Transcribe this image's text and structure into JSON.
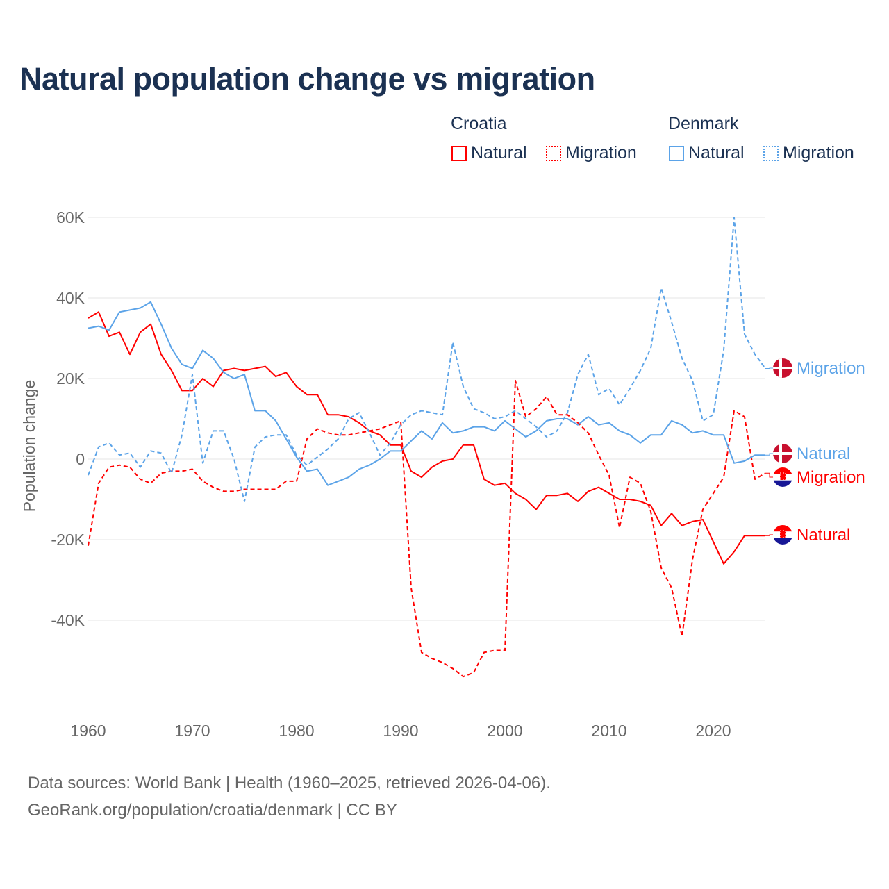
{
  "chart_data": {
    "type": "line",
    "title": "Natural population change vs migration",
    "xlabel": "",
    "ylabel": "Population change",
    "xlim": [
      1960,
      2025
    ],
    "ylim": [
      -57000,
      65000
    ],
    "yticks": [
      60000,
      40000,
      20000,
      0,
      -20000,
      -40000
    ],
    "ytick_labels": [
      "60K",
      "40K",
      "20K",
      "0",
      "-20K",
      "-40K"
    ],
    "xticks": [
      1960,
      1970,
      1980,
      1990,
      2000,
      2010,
      2020
    ],
    "xtick_labels": [
      "1960",
      "1970",
      "1980",
      "1990",
      "2000",
      "2010",
      "2020"
    ],
    "grid": true,
    "legend_position": "top-right",
    "x_start": 1960,
    "series": [
      {
        "name": "Croatia Natural",
        "country": "Croatia",
        "kind": "Natural",
        "color": "#ff0000",
        "dash": false,
        "end_label": "Natural",
        "values": [
          35,
          36.5,
          30.5,
          31.5,
          26,
          31.5,
          33.5,
          26,
          22,
          17,
          17,
          20,
          18,
          22,
          22.5,
          22,
          22.5,
          23,
          20.5,
          21.5,
          18,
          16,
          16,
          11,
          11,
          10.5,
          9,
          7,
          6,
          3.5,
          3.5,
          -3,
          -4.5,
          -2,
          -0.5,
          0,
          3.5,
          3.5,
          -5,
          -6.5,
          -6,
          -8.5,
          -10,
          -12.5,
          -9,
          -9,
          -8.5,
          -10.5,
          -8,
          -7,
          -8.5,
          -10,
          -10,
          -10.5,
          -11.5,
          -16.5,
          -13.5,
          -16.5,
          -15.5,
          -15,
          -20.5,
          -26,
          -23,
          -19,
          -19,
          -19
        ]
      },
      {
        "name": "Croatia Migration",
        "country": "Croatia",
        "kind": "Migration",
        "color": "#ff0000",
        "dash": true,
        "end_label": "Migration",
        "values": [
          -21.5,
          -6,
          -2,
          -1.5,
          -2,
          -5,
          -6,
          -3.5,
          -3,
          -3,
          -2.5,
          -5.5,
          -7,
          -8,
          -8,
          -7.5,
          -7.5,
          -7.5,
          -7.5,
          -5.5,
          -5.5,
          5,
          7.5,
          6.5,
          6,
          6,
          6.5,
          7,
          7.5,
          8.5,
          9.5,
          -32,
          -48,
          -49.5,
          -50.5,
          -52,
          -54,
          -53,
          -48,
          -47.5,
          -47.5,
          19.5,
          10.5,
          12.5,
          15.5,
          11,
          11,
          9,
          6.5,
          1,
          -4,
          -17,
          -4.5,
          -6,
          -13,
          -27,
          -32,
          -44,
          -25,
          -12.5,
          -8.5,
          -4.5,
          12,
          10.5,
          -5,
          -3.5
        ]
      },
      {
        "name": "Denmark Natural",
        "country": "Denmark",
        "kind": "Natural",
        "color": "#5ba3e8",
        "dash": false,
        "end_label": "Natural",
        "values": [
          32.5,
          33,
          32,
          36.5,
          37,
          37.5,
          39,
          33.5,
          27.5,
          23.5,
          22.5,
          27,
          25,
          21.5,
          20,
          21,
          12,
          12,
          9.5,
          5,
          0.5,
          -3,
          -2.5,
          -6.5,
          -5.5,
          -4.5,
          -2.5,
          -1.5,
          0,
          2,
          2,
          4.5,
          7,
          5,
          9,
          6.5,
          7,
          8,
          8,
          7,
          9.5,
          7.5,
          5.5,
          7,
          9.5,
          10,
          10,
          8.5,
          10.5,
          8.5,
          9,
          7,
          6,
          4,
          6,
          6,
          9.5,
          8.5,
          6.5,
          7,
          6,
          6,
          -1,
          -0.5,
          1,
          1
        ]
      },
      {
        "name": "Denmark Migration",
        "country": "Denmark",
        "kind": "Migration",
        "color": "#5ba3e8",
        "dash": true,
        "end_label": "Migration",
        "values": [
          -4,
          3,
          4,
          1,
          1.5,
          -2,
          2,
          1.5,
          -3.5,
          6,
          21,
          -1,
          7,
          7,
          0,
          -10.5,
          3,
          5.5,
          6,
          6,
          1,
          -1.5,
          0.5,
          2.5,
          5,
          10,
          11.5,
          6.5,
          1,
          4,
          8.5,
          11,
          12,
          11.5,
          11,
          29,
          18,
          12.5,
          11.5,
          10,
          10.5,
          12,
          10,
          8,
          5.5,
          7,
          11.5,
          21,
          26,
          16,
          17.5,
          13.5,
          17.5,
          22,
          27.5,
          42.5,
          34,
          25,
          19.5,
          9.5,
          11,
          27,
          60,
          31,
          26,
          22.5
        ]
      }
    ],
    "value_unit": "thousands"
  },
  "legend": {
    "groups": [
      {
        "label": "Croatia",
        "items": [
          "Natural",
          "Migration"
        ]
      },
      {
        "label": "Denmark",
        "items": [
          "Natural",
          "Migration"
        ]
      }
    ]
  },
  "footer": {
    "line1": "Data sources: World Bank | Health (1960–2025, retrieved 2026-04-06).",
    "line2": "GeoRank.org/population/croatia/denmark | CC BY"
  }
}
